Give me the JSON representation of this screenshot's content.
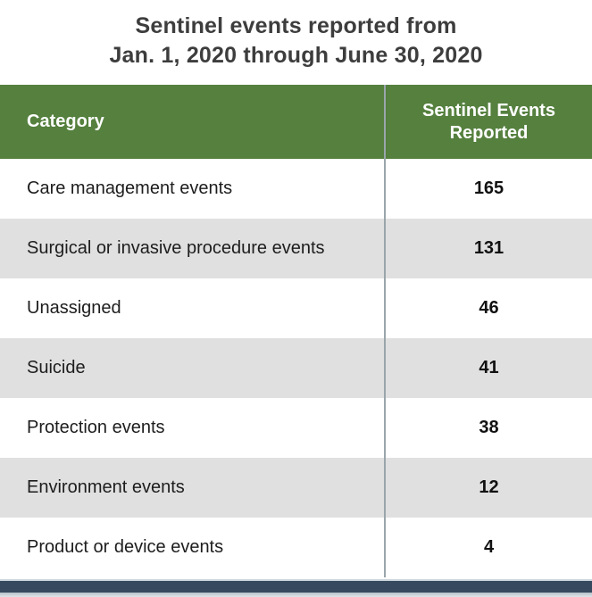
{
  "title": {
    "line1": "Sentinel events reported from",
    "line2": "Jan. 1, 2020 through June 30, 2020"
  },
  "chart_data": {
    "type": "table",
    "title": "Sentinel events reported from Jan. 1, 2020 through June 30, 2020",
    "columns": [
      "Category",
      "Sentinel Events Reported"
    ],
    "rows": [
      {
        "category": "Care management events",
        "count": "165"
      },
      {
        "category": "Surgical or invasive procedure events",
        "count": "131"
      },
      {
        "category": "Unassigned",
        "count": "46"
      },
      {
        "category": "Suicide",
        "count": "41"
      },
      {
        "category": "Protection events",
        "count": "38"
      },
      {
        "category": "Environment events",
        "count": "12"
      },
      {
        "category": "Product or device events",
        "count": "4"
      }
    ]
  },
  "colors": {
    "header_bg": "#55803E",
    "header_text": "#FFFFFF",
    "row_bg": "#FFFFFF",
    "row_alt_bg": "#E0E0E0",
    "divider": "#9AA5AB",
    "bottom_bar": "#36495E",
    "title_text": "#3D3D3D",
    "body_text": "#1D1D1D",
    "count_text": "#111111"
  }
}
